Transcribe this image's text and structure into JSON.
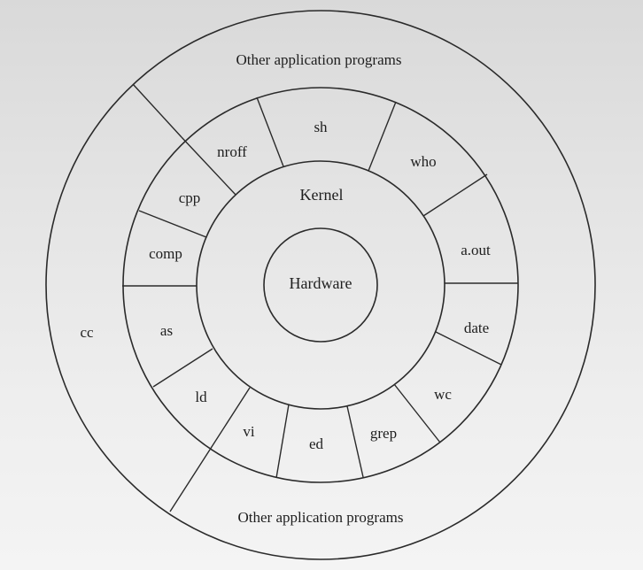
{
  "diagram": {
    "hardware": "Hardware",
    "kernel": "Kernel",
    "outer_top": "Other application programs",
    "outer_bottom": "Other application programs",
    "outer_left": "cc",
    "programs": {
      "sh": "sh",
      "who": "who",
      "a_out": "a.out",
      "date": "date",
      "wc": "wc",
      "grep": "grep",
      "ed": "ed",
      "vi": "vi",
      "ld": "ld",
      "as": "as",
      "comp": "comp",
      "cpp": "cpp",
      "nroff": "nroff"
    }
  }
}
